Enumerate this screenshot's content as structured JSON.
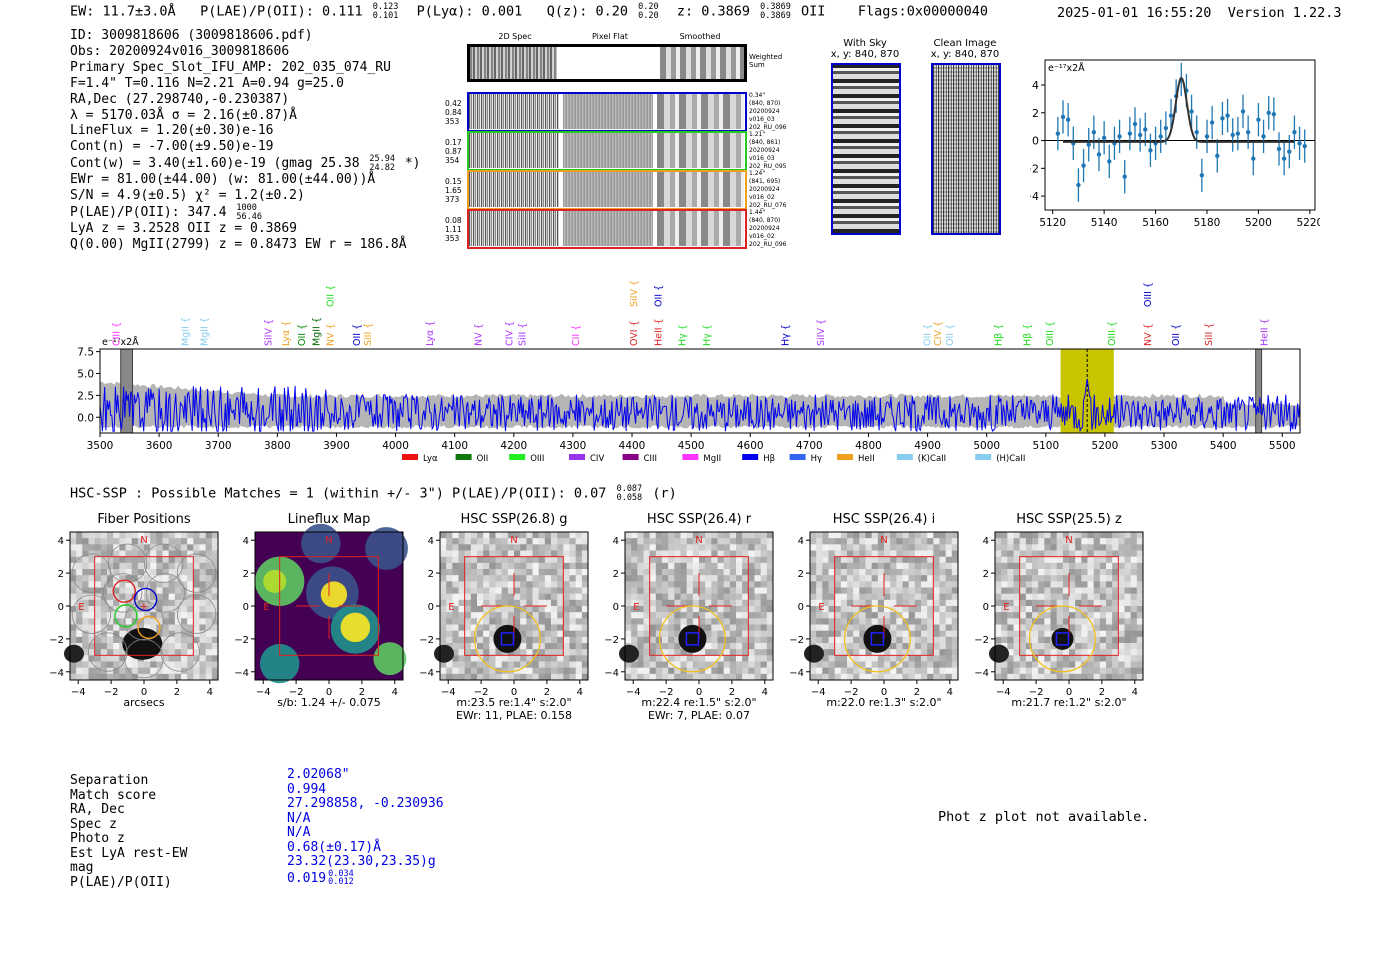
{
  "header": {
    "ew": "EW: 11.7±3.0Å",
    "plae_label": "P(LAE)/P(OII): 0.111",
    "plae_hi": "0.123",
    "plae_lo": "0.101",
    "plya": "P(Lyα): 0.001",
    "qz_label": "Q(z): 0.20",
    "qz_hi": "0.20",
    "qz_lo": "0.20",
    "z_label": "z: 0.3869",
    "z_hi": "0.3869",
    "z_lo": "0.3869",
    "z_line": "OII",
    "flags": "Flags:0x00000040",
    "datetime": "2025-01-01 16:55:20",
    "version": "Version 1.22.3"
  },
  "info": {
    "id": "ID: 3009818606 (3009818606.pdf)",
    "obs": "Obs: 20200924v016_3009818606",
    "primary": "Primary Spec_Slot_IFU_AMP: 202_035_074_RU",
    "fiber_params": "F=1.4\"  T=0.116  N=2.21  A=0.94  g=25.0",
    "radec": "RA,Dec (27.298740,-0.230387)",
    "lambda": "λ = 5170.03Å  σ = 2.16(±0.87)Å",
    "lineflux": "LineFlux = 1.20(±0.30)e-16",
    "cont_n": "Cont(n) = -7.00(±9.50)e-19",
    "cont_w_pre": "Cont(w) = 3.40(±1.60)e-19 (gmag 25.38",
    "cont_w_hi": "25.94",
    "cont_w_lo": "24.82",
    "cont_w_post": "*)",
    "ewr": "EWr = 81.00(±44.00) (w: 81.00(±44.00))Å",
    "sn": "S/N = 4.9(±0.5)  χ² = 1.2(±0.2)",
    "plae_pre": "P(LAE)/P(OII): 347.4",
    "plae_hi": "1000",
    "plae_lo": "56.46",
    "lya_z": "LyA z = 3.2528  OII z = 0.3869",
    "q_mgii": "Q(0.00) MgII(2799) z = 0.8473  EW r = 186.8Å"
  },
  "twod": {
    "col_titles": [
      "2D Spec",
      "Pixel Flat",
      "Smoothed"
    ],
    "weighted_sum": "Weighted Sum",
    "rows": [
      {
        "left": [
          "0.42",
          "0.84",
          "353"
        ],
        "right": [
          "0.34\"",
          "(840, 870)",
          "20200924",
          "v016_03",
          "202_RU_096"
        ],
        "color": "#0000cc"
      },
      {
        "left": [
          "0.17",
          "0.87",
          "354"
        ],
        "right": [
          "1.21\"",
          "(840, 861)",
          "20200924",
          "v016_03",
          "202_RU_095"
        ],
        "color": "#22cc22"
      },
      {
        "left": [
          "0.15",
          "1.65",
          "373"
        ],
        "right": [
          "1.24\"",
          "(841, 695)",
          "20200924",
          "v016_02",
          "202_RU_076"
        ],
        "color": "#f0a020"
      },
      {
        "left": [
          "0.08",
          "1.11",
          "353"
        ],
        "right": [
          "1.44\"",
          "(840, 870)",
          "20200924",
          "v016_02",
          "202_RU_096"
        ],
        "color": "#dd2222"
      }
    ]
  },
  "sky": {
    "with_sky_title": "With Sky",
    "with_sky_xy": "x, y: 840, 870",
    "clean_title": "Clean Image",
    "clean_xy": "x, y: 840, 870"
  },
  "chart_data": [
    {
      "type": "scatter",
      "title": "Emission line fit",
      "ylabel": "e⁻¹⁷x2Å",
      "xlim": [
        5117,
        5222
      ],
      "ylim": [
        -5.0,
        5.8
      ],
      "xticks": [
        5120,
        5140,
        5160,
        5180,
        5200,
        5220
      ],
      "yticks": [
        -4,
        -2,
        0,
        2,
        4
      ],
      "x": [
        5122,
        5124,
        5126,
        5128,
        5130,
        5132,
        5134,
        5136,
        5138,
        5140,
        5142,
        5144,
        5146,
        5148,
        5150,
        5152,
        5154,
        5156,
        5158,
        5160,
        5162,
        5164,
        5166,
        5168,
        5170,
        5172,
        5174,
        5176,
        5178,
        5180,
        5182,
        5184,
        5186,
        5188,
        5190,
        5192,
        5194,
        5196,
        5198,
        5200,
        5202,
        5204,
        5206,
        5208,
        5210,
        5212,
        5214,
        5216,
        5218
      ],
      "y": [
        0.5,
        1.7,
        1.5,
        -0.2,
        -3.2,
        -1.8,
        -0.3,
        0.6,
        -1.0,
        0.2,
        -1.5,
        -0.2,
        0.3,
        -2.6,
        0.5,
        1.2,
        0.4,
        0.8,
        -0.7,
        -0.2,
        0.3,
        0.9,
        1.8,
        3.2,
        4.4,
        3.6,
        2.1,
        0.6,
        -2.5,
        0.3,
        1.3,
        -1.1,
        1.6,
        1.8,
        0.4,
        0.5,
        2.1,
        0.6,
        -1.3,
        1.5,
        0.3,
        2.0,
        1.9,
        -0.6,
        -1.3,
        -0.8,
        0.6,
        -0.2,
        -0.4
      ],
      "err": [
        1.2,
        1.2,
        1.2,
        1.2,
        1.2,
        1.2,
        1.2,
        1.2,
        1.2,
        1.2,
        1.2,
        1.2,
        1.2,
        1.2,
        1.2,
        1.2,
        1.2,
        1.2,
        1.2,
        1.2,
        1.2,
        1.2,
        1.2,
        1.2,
        1.2,
        1.2,
        1.2,
        1.2,
        1.2,
        1.2,
        1.2,
        1.2,
        1.2,
        1.2,
        1.2,
        1.2,
        1.2,
        1.2,
        1.2,
        1.2,
        1.2,
        1.2,
        1.2,
        1.2,
        1.2,
        1.2,
        1.2,
        1.2,
        1.2
      ],
      "fit": {
        "center": 5170.03,
        "sigma": 2.16,
        "amplitude": 4.6,
        "baseline": -0.1
      }
    },
    {
      "type": "line",
      "title": "Full spectrum",
      "ylabel": "e⁻¹⁷x2Å",
      "xlim": [
        3500,
        5530
      ],
      "ylim": [
        -1.8,
        7.8
      ],
      "xticks": [
        3500,
        3600,
        3700,
        3800,
        3900,
        4000,
        4100,
        4200,
        4300,
        4400,
        4500,
        4600,
        4700,
        4800,
        4900,
        5000,
        5100,
        5200,
        5300,
        5400,
        5500
      ],
      "yticks": [
        0.0,
        2.5,
        5.0,
        7.5
      ],
      "ytick_labels": [
        "0.0",
        "2.5",
        "5.0",
        "7.5"
      ],
      "highlight_range": [
        5125,
        5215
      ],
      "mask_ranges": [
        [
          3535,
          3555
        ],
        [
          5455,
          5465
        ]
      ],
      "emission_line_labels": [
        {
          "x": 3528,
          "name": "CIII",
          "color": "#ff33ff"
        },
        {
          "x": 3645,
          "name": "MgII",
          "color": "#88ccee"
        },
        {
          "x": 3677,
          "name": "MgII",
          "color": "#88ccee"
        },
        {
          "x": 3785,
          "name": "SiIV",
          "color": "#aa33ff"
        },
        {
          "x": 3815,
          "name": "Lyα",
          "color": "#f0a020"
        },
        {
          "x": 3842,
          "name": "OII",
          "color": "#008800"
        },
        {
          "x": 3866,
          "name": "MgII",
          "color": "#006600"
        },
        {
          "x": 3890,
          "name": "NV",
          "color": "#f0a020"
        },
        {
          "x": 3935,
          "name": "OII",
          "color": "#0000cc"
        },
        {
          "x": 3953,
          "name": "SiII",
          "color": "#f0a020"
        },
        {
          "x": 4058,
          "name": "Lyα",
          "color": "#aa33ff"
        },
        {
          "x": 4140,
          "name": "NV",
          "color": "#aa33ff"
        },
        {
          "x": 4193,
          "name": "CIV",
          "color": "#aa33ff"
        },
        {
          "x": 4215,
          "name": "SiII",
          "color": "#aa33ff"
        },
        {
          "x": 4305,
          "name": "CII",
          "color": "#ff33ff"
        },
        {
          "x": 4403,
          "name": "OVI",
          "color": "#dd2222"
        },
        {
          "x": 4445,
          "name": "HeII",
          "color": "#dd2222"
        },
        {
          "x": 4485,
          "name": "Hγ",
          "color": "#22dd22"
        },
        {
          "x": 4527,
          "name": "Hγ",
          "color": "#22dd22"
        },
        {
          "x": 4660,
          "name": "Hγ",
          "color": "#0000cc"
        },
        {
          "x": 4720,
          "name": "SiIV",
          "color": "#aa33ff"
        },
        {
          "x": 4900,
          "name": "OII",
          "color": "#88ccee"
        },
        {
          "x": 4918,
          "name": "CIV",
          "color": "#f0a020"
        },
        {
          "x": 4938,
          "name": "OII",
          "color": "#88ccee"
        },
        {
          "x": 5020,
          "name": "Hβ",
          "color": "#22dd22"
        },
        {
          "x": 5069,
          "name": "Hβ",
          "color": "#22dd22"
        },
        {
          "x": 5107,
          "name": "OIII",
          "color": "#22dd22"
        },
        {
          "x": 5212,
          "name": "OIII",
          "color": "#22dd22"
        },
        {
          "x": 5273,
          "name": "NV",
          "color": "#dd2222"
        },
        {
          "x": 5320,
          "name": "OII",
          "color": "#0000cc"
        },
        {
          "x": 5376,
          "name": "SiII",
          "color": "#dd2222"
        },
        {
          "x": 5470,
          "name": "HeII",
          "color": "#aa33ff"
        }
      ],
      "upper_labels": [
        {
          "x": 3890,
          "name": "OII",
          "color": "#22dd22"
        },
        {
          "x": 4403,
          "name": "SiIV",
          "color": "#f0a020"
        },
        {
          "x": 4445,
          "name": "OII",
          "color": "#0000cc"
        },
        {
          "x": 5273,
          "name": "OIII",
          "color": "#0000cc"
        }
      ],
      "legend": [
        {
          "name": "Lyα",
          "color": "#ee1111"
        },
        {
          "name": "OII",
          "color": "#117711"
        },
        {
          "name": "OIII",
          "color": "#22ee22"
        },
        {
          "name": "CIV",
          "color": "#9933ee"
        },
        {
          "name": "CIII",
          "color": "#880088"
        },
        {
          "name": "MgII",
          "color": "#ff33ff"
        },
        {
          "name": "Hβ",
          "color": "#0000ee"
        },
        {
          "name": "Hγ",
          "color": "#3366ee"
        },
        {
          "name": "HeII",
          "color": "#f0a020"
        },
        {
          "name": "(K)CaII",
          "color": "#88ccee"
        },
        {
          "name": "(H)CaII",
          "color": "#88ccee"
        }
      ]
    }
  ],
  "hsc": {
    "heading_pre": "HSC-SSP : Possible Matches = 1 (within +/- 3\")  P(LAE)/P(OII): 0.07",
    "heading_hi": "0.087",
    "heading_lo": "0.058",
    "heading_post": "(r)",
    "panels": [
      {
        "title": "Fiber Positions",
        "cap1": "arcsecs",
        "cap2": ""
      },
      {
        "title": "Lineflux Map",
        "cap1": "s/b: 1.24 +/- 0.075",
        "cap2": ""
      },
      {
        "title": "HSC SSP(26.8) g",
        "cap1": "m:23.5  re:1.4\"  s:2.0\"",
        "cap2": "EWr: 11, PLAE: 0.158"
      },
      {
        "title": "HSC SSP(26.4) r",
        "cap1": "m:22.4  re:1.5\"  s:2.0\"",
        "cap2": "EWr: 7, PLAE: 0.07"
      },
      {
        "title": "HSC SSP(26.4) i",
        "cap1": "m:22.0  re:1.3\"  s:2.0\"",
        "cap2": ""
      },
      {
        "title": "HSC SSP(25.5) z",
        "cap1": "m:21.7  re:1.2\"  s:2.0\"",
        "cap2": ""
      }
    ],
    "xticks": [
      "−4",
      "−2",
      "0",
      "2",
      "4"
    ],
    "yticks": [
      "4",
      "2",
      "0",
      "−2",
      "−4"
    ],
    "north": "N",
    "east": "E"
  },
  "match": {
    "labels": [
      "Separation",
      "Match score",
      "RA, Dec",
      "Spec z",
      "Photo z",
      "Est LyA rest-EW",
      "mag",
      "P(LAE)/P(OII)"
    ],
    "values": [
      "2.02068\"",
      "0.994",
      "27.298858, -0.230936",
      "N/A",
      "N/A",
      "0.68(±0.17)Å",
      "23.32(23.30,23.35)g",
      "0.019"
    ],
    "plae_hi": "0.034",
    "plae_lo": "0.012",
    "photz_msg": "Phot z plot not available."
  }
}
